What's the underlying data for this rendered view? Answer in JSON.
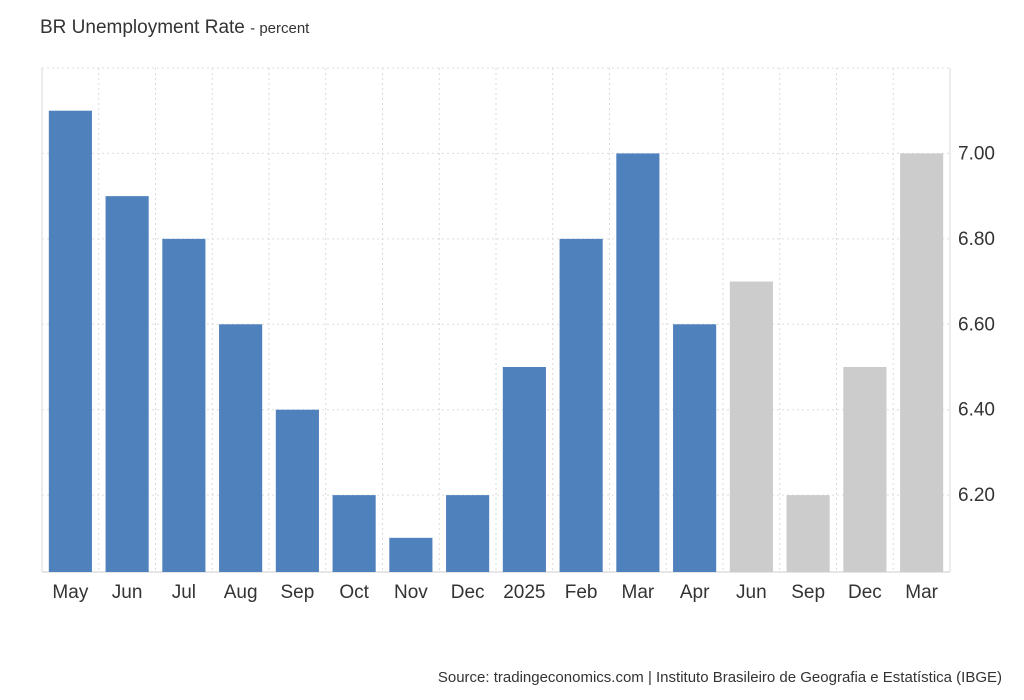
{
  "chart_data": {
    "type": "bar",
    "title": "BR Unemployment Rate",
    "subtitle": "- percent",
    "categories": [
      "May",
      "Jun",
      "Jul",
      "Aug",
      "Sep",
      "Oct",
      "Nov",
      "Dec",
      "2025",
      "Feb",
      "Mar",
      "Apr",
      "Jun",
      "Sep",
      "Dec",
      "Mar"
    ],
    "series": [
      {
        "values": [
          7.1,
          6.9,
          6.8,
          6.6,
          6.4,
          6.2,
          6.1,
          6.2,
          6.5,
          6.8,
          7.0,
          6.6,
          null,
          null,
          null,
          null
        ],
        "color": "#4f81bd"
      },
      {
        "values": [
          null,
          null,
          null,
          null,
          null,
          null,
          null,
          null,
          null,
          null,
          null,
          null,
          6.7,
          6.2,
          6.5,
          7.0
        ],
        "color": "#cccccc"
      }
    ],
    "yticks": [
      "6.20",
      "6.40",
      "6.60",
      "6.80",
      "7.00"
    ],
    "ylim": [
      6.02,
      7.2
    ],
    "xlabel": "",
    "ylabel": "",
    "grid": true,
    "axis_position": "right"
  },
  "source": "Source: tradingeconomics.com | Instituto Brasileiro de Geografia e Estatística (IBGE)"
}
